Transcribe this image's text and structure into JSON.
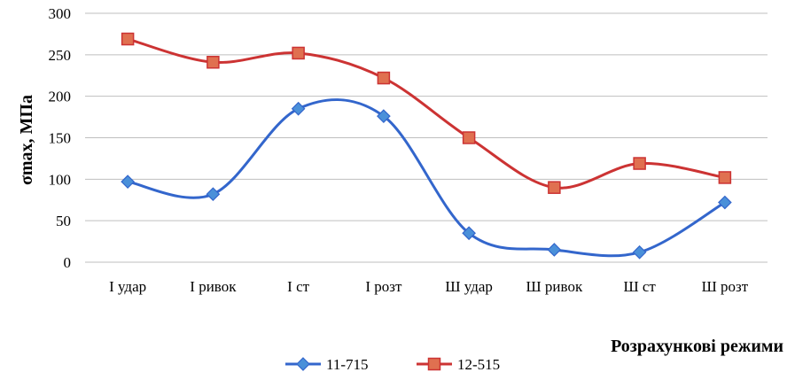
{
  "chart_data": {
    "type": "line",
    "categories": [
      "I удар",
      "I ривок",
      "I ст",
      "I розт",
      "Ш удар",
      "Ш ривок",
      "Ш ст",
      "Ш розт"
    ],
    "series": [
      {
        "name": "11-715",
        "values": [
          97,
          82,
          185,
          176,
          35,
          15,
          12,
          72
        ],
        "color": "#3366CC",
        "marker": "diamond"
      },
      {
        "name": "12-515",
        "values": [
          269,
          241,
          252,
          222,
          150,
          90,
          119,
          102
        ],
        "color": "#CC3333",
        "marker": "square"
      }
    ],
    "title": "",
    "xlabel": "Розрахункові режими",
    "ylabel": "σmax, МПа",
    "ylim": [
      0,
      300
    ],
    "yticks": [
      0,
      50,
      100,
      150,
      200,
      250,
      300
    ],
    "grid": true,
    "smooth": true,
    "legend": "bottom"
  }
}
